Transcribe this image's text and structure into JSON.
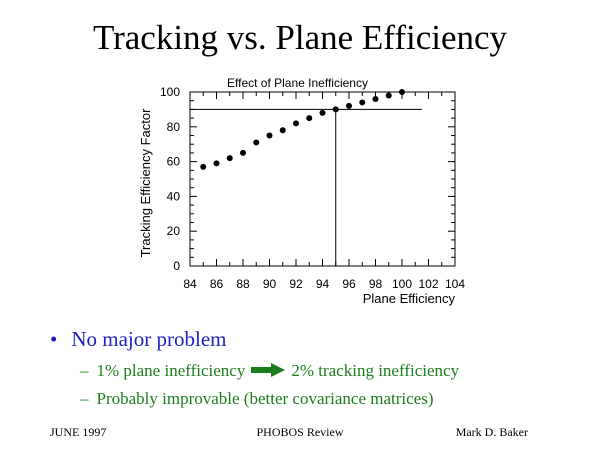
{
  "slide": {
    "title": "Tracking vs. Plane Efficiency",
    "bullet": "No major problem",
    "bullet_symbol": "•",
    "sub_dash": "–",
    "sub1_left": "1% plane inefficiency",
    "sub1_right": "2% tracking inefficiency",
    "sub1_arrow_icon": "right-arrow-icon",
    "sub2": "Probably improvable  (better covariance matrices)",
    "footer_left": "JUNE 1997",
    "footer_center": "PHOBOS Review",
    "footer_right": "Mark D. Baker",
    "colors": {
      "bullet": "#1f1fbf",
      "sub_text": "#1c7d1c",
      "arrow": "#1c7d1c"
    }
  },
  "chart_data": {
    "type": "scatter",
    "title": "Effect of Plane Inefficiency",
    "xlabel": "Plane Efficiency",
    "ylabel": "Tracking Efficiency Factor",
    "xlim": [
      84,
      104
    ],
    "ylim": [
      0,
      100
    ],
    "xticks": [
      84,
      86,
      88,
      90,
      92,
      94,
      96,
      98,
      100,
      102,
      104
    ],
    "yticks": [
      0,
      20,
      40,
      60,
      80,
      100
    ],
    "grid": false,
    "series": [
      {
        "x": [
          85,
          86,
          87,
          88,
          89,
          90,
          91,
          92,
          93,
          94,
          95,
          96,
          97,
          98,
          99,
          100
        ],
        "y": [
          57,
          59,
          62,
          65,
          71,
          75,
          78,
          82,
          85,
          88,
          90,
          92,
          94,
          96,
          98,
          100
        ]
      }
    ],
    "reference_lines": {
      "horizontal_y": 90,
      "vertical_x": 95
    }
  }
}
